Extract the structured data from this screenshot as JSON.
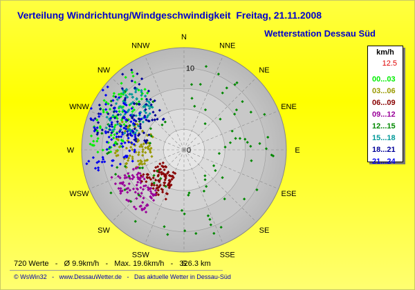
{
  "header": {
    "title": "Verteilung Windrichtung/Windgeschwindigkeit  Freitag, 21.11.2008",
    "station": "Wetterstation Dessau Süd"
  },
  "legend": {
    "unit": "km/h",
    "scale_value": "12.5",
    "entries": [
      {
        "label": "00...03",
        "color": "#00ee00"
      },
      {
        "label": "03...06",
        "color": "#999900"
      },
      {
        "label": "06...09",
        "color": "#880000"
      },
      {
        "label": "09...12",
        "color": "#990099"
      },
      {
        "label": "12...15",
        "color": "#008800"
      },
      {
        "label": "15...18",
        "color": "#009999"
      },
      {
        "label": "18...21",
        "color": "#000099"
      },
      {
        "label": "21...24",
        "color": "#0000ee"
      }
    ]
  },
  "footer": {
    "stats": "720 Werte   -   Ø 9.9km/h   -   Max. 19.6km/h   -   326.3 km",
    "credits": "© WsWin32   -   www.DessauWetter.de   -   Das aktuelle Wetter in Dessau-Süd"
  },
  "chart_data": {
    "type": "scatter",
    "subtype": "polar-wind-rose",
    "title": "Verteilung Windrichtung/Windgeschwindigkeit  Freitag, 21.11.2008",
    "directions": [
      "N",
      "NNE",
      "NE",
      "ENE",
      "E",
      "ESE",
      "SE",
      "SSE",
      "S",
      "SSW",
      "SW",
      "WSW",
      "W",
      "WNW",
      "NW",
      "NNW"
    ],
    "radial_ticks": [
      "0",
      "10"
    ],
    "radial_max": 12.5,
    "unit": "km/h",
    "point_count": 720,
    "mean_speed": "9.9km/h",
    "max_speed": "19.6km/h",
    "distance": "326.3 km",
    "clusters": [
      {
        "time_range": "00...03",
        "color": "#00ee00",
        "dir_from": 268,
        "dir_to": 330,
        "speed_min": 7.5,
        "speed_max": 11.5,
        "count": 90
      },
      {
        "time_range": "03...06",
        "color": "#999900",
        "dir_from": 250,
        "dir_to": 300,
        "speed_min": 4.0,
        "speed_max": 8.5,
        "count": 90
      },
      {
        "time_range": "06...09",
        "color": "#880000",
        "dir_from": 200,
        "dir_to": 240,
        "speed_min": 3.0,
        "speed_max": 6.5,
        "count": 90
      },
      {
        "time_range": "09...12",
        "color": "#990099",
        "dir_from": 210,
        "dir_to": 250,
        "speed_min": 6.0,
        "speed_max": 9.5,
        "count": 90
      },
      {
        "time_range": "12...15",
        "color": "#008800",
        "dir_from": 5,
        "dir_to": 330,
        "speed_min": 4.0,
        "speed_max": 11.0,
        "count": 90
      },
      {
        "time_range": "15...18",
        "color": "#009999",
        "dir_from": 285,
        "dir_to": 325,
        "speed_min": 6.0,
        "speed_max": 10.5,
        "count": 90
      },
      {
        "time_range": "18...21",
        "color": "#000099",
        "dir_from": 280,
        "dir_to": 330,
        "speed_min": 4.5,
        "speed_max": 12.0,
        "count": 90
      },
      {
        "time_range": "21...24",
        "color": "#0000ee",
        "dir_from": 255,
        "dir_to": 310,
        "speed_min": 6.0,
        "speed_max": 12.5,
        "count": 90
      }
    ]
  }
}
